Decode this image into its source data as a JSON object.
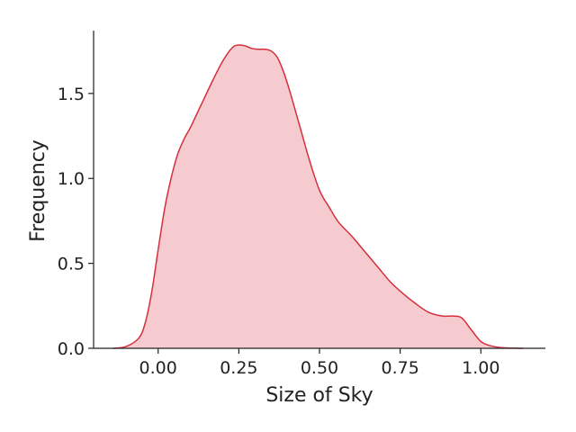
{
  "chart_data": {
    "type": "area",
    "subtype": "kde",
    "title": "",
    "xlabel": "Size of Sky",
    "ylabel": "Frequency",
    "xlim": [
      -0.2,
      1.2
    ],
    "ylim": [
      0,
      1.87
    ],
    "xticks": [
      0.0,
      0.25,
      0.5,
      0.75,
      1.0
    ],
    "xtick_labels": [
      "0.00",
      "0.25",
      "0.50",
      "0.75",
      "1.00"
    ],
    "yticks": [
      0.0,
      0.5,
      1.0,
      1.5
    ],
    "ytick_labels": [
      "0.0",
      "0.5",
      "1.0",
      "1.5"
    ],
    "grid": false,
    "spines": [
      "left",
      "bottom"
    ],
    "colors": {
      "line": "#d62f3c",
      "fill": "#f5cbd0"
    },
    "series": [
      {
        "x": [
          -0.14,
          -0.1,
          -0.06,
          -0.04,
          -0.02,
          0.0,
          0.02,
          0.04,
          0.06,
          0.08,
          0.1,
          0.12,
          0.14,
          0.17,
          0.2,
          0.23,
          0.25,
          0.27,
          0.29,
          0.31,
          0.33,
          0.35,
          0.37,
          0.39,
          0.41,
          0.44,
          0.47,
          0.5,
          0.53,
          0.56,
          0.6,
          0.64,
          0.68,
          0.72,
          0.76,
          0.8,
          0.84,
          0.88,
          0.91,
          0.94,
          0.97,
          1.0,
          1.03,
          1.07,
          1.13
        ],
        "y": [
          0.0,
          0.01,
          0.06,
          0.15,
          0.33,
          0.58,
          0.82,
          1.0,
          1.14,
          1.23,
          1.3,
          1.38,
          1.46,
          1.58,
          1.69,
          1.77,
          1.785,
          1.78,
          1.765,
          1.76,
          1.76,
          1.75,
          1.71,
          1.62,
          1.5,
          1.3,
          1.1,
          0.93,
          0.83,
          0.74,
          0.66,
          0.57,
          0.48,
          0.39,
          0.32,
          0.26,
          0.21,
          0.19,
          0.19,
          0.18,
          0.11,
          0.04,
          0.015,
          0.003,
          0.0
        ]
      }
    ]
  }
}
